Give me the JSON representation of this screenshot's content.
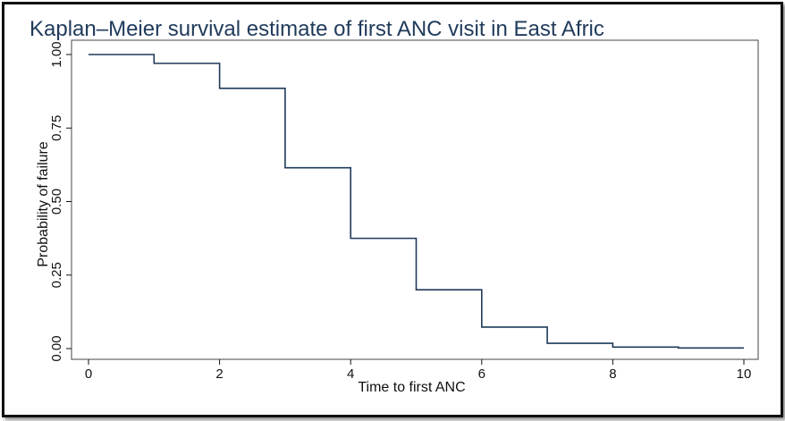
{
  "chart_data": {
    "type": "line",
    "step": true,
    "title": "Kaplan–Meier survival estimate of first ANC visit in East Afric",
    "xlabel": "Time to first ANC",
    "ylabel": "Probability of  failure",
    "xlim": [
      0,
      10
    ],
    "ylim": [
      0,
      1
    ],
    "xticks": [
      0,
      2,
      4,
      6,
      8,
      10
    ],
    "yticks": [
      "0.00",
      "0.25",
      "0.50",
      "0.75",
      "1.00"
    ],
    "grid": false,
    "series": [
      {
        "color": "#1f3a5a",
        "x": [
          0,
          1,
          2,
          3,
          4,
          5,
          6,
          7,
          8,
          9,
          10
        ],
        "y": [
          1.0,
          0.97,
          0.885,
          0.615,
          0.375,
          0.2,
          0.073,
          0.018,
          0.005,
          0.002,
          0.002
        ]
      }
    ]
  }
}
